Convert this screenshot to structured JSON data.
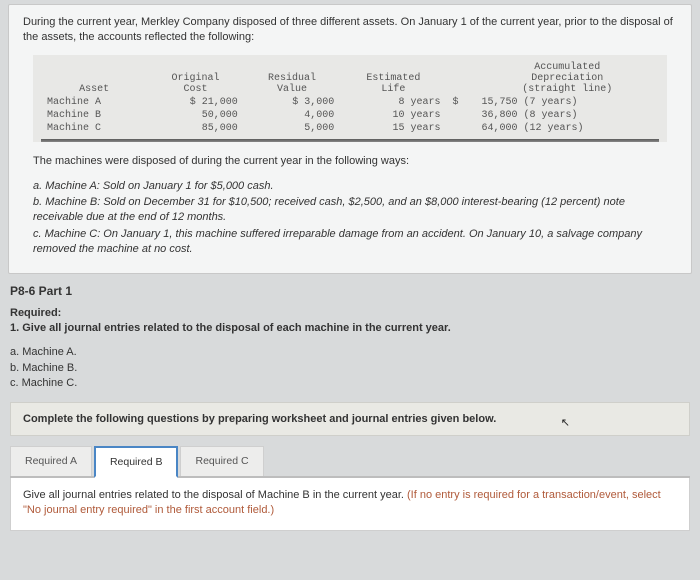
{
  "intro": "During the current year, Merkley Company disposed of three different assets. On January 1 of the current year, prior to the disposal of the assets, the accounts reflected the following:",
  "table": {
    "headers": {
      "asset": "Asset",
      "cost": "Original\nCost",
      "residual": "Residual\nValue",
      "life": "Estimated\nLife",
      "accum": "Accumulated\nDepreciation\n(straight line)"
    },
    "rows": [
      {
        "asset": "Machine A",
        "cost": "$ 21,000",
        "residual": "$ 3,000",
        "life": "8 years",
        "cur": "$",
        "accum": "15,750 (7 years)"
      },
      {
        "asset": "Machine B",
        "cost": "50,000",
        "residual": "4,000",
        "life": "10 years",
        "cur": "",
        "accum": "36,800 (8 years)"
      },
      {
        "asset": "Machine C",
        "cost": "85,000",
        "residual": "5,000",
        "life": "15 years",
        "cur": "",
        "accum": "64,000 (12 years)"
      }
    ]
  },
  "disposed_intro": "The machines were disposed of during the current year in the following ways:",
  "ways": {
    "a": "a. Machine A: Sold on January 1 for $5,000 cash.",
    "b": "b. Machine B: Sold on December 31 for $10,500; received cash, $2,500, and an $8,000 interest-bearing (12 percent) note receivable due at the end of 12 months.",
    "c": "c. Machine C: On January 1, this machine suffered irreparable damage from an accident. On January 10, a salvage company removed the machine at no cost."
  },
  "part_title": "P8-6 Part 1",
  "required_label": "Required:",
  "required_text": "1. Give all journal entries related to the disposal of each machine in the current year.",
  "sub": {
    "a": "a. Machine A.",
    "b": "b. Machine B.",
    "c": "c. Machine C."
  },
  "instruction": "Complete the following questions by preparing worksheet and journal entries given below.",
  "tabs": {
    "a": "Required A",
    "b": "Required B",
    "c": "Required C"
  },
  "tab_b_text": "Give all journal entries related to the disposal of Machine B in the current year. ",
  "tab_b_hint": "(If no entry is required for a transaction/event, select \"No journal entry required\" in the first account field.)",
  "colors": {
    "page_bg": "#d8dadb",
    "card_bg": "#f4f5f5",
    "table_bg": "#e8e8e6",
    "tab_active_border": "#4a86c5",
    "hint_color": "#b05a3a"
  }
}
